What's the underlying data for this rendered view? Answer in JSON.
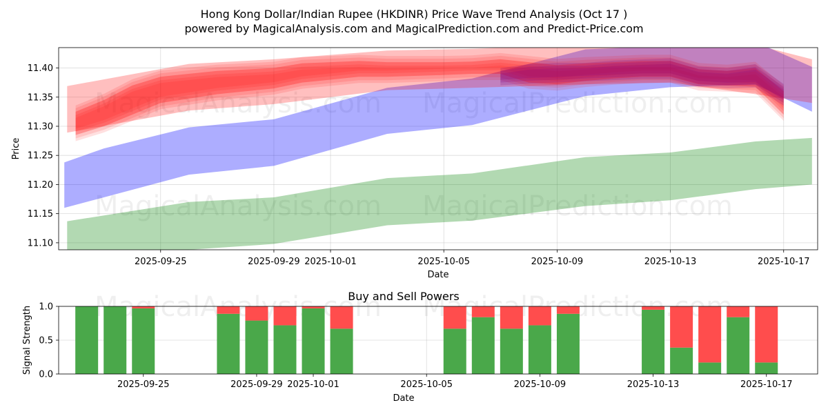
{
  "title_line1": "Hong Kong Dollar/Indian Rupee (HKDINR) Price Wave Trend Analysis (Oct 17 )",
  "title_line2": "powered by MagicalAnalysis.com and MagicalPrediction.com and Predict-Price.com",
  "watermarks": [
    "MagicalAnalysis.com",
    "MagicalPrediction.com"
  ],
  "colors": {
    "red": "#ff0000",
    "blue": "#0000ff",
    "green": "#008000",
    "purple": "#800080",
    "buy": "#4aa84a",
    "sell": "#ff4d4d"
  },
  "chart_data": [
    {
      "type": "area",
      "title": "",
      "xlabel": "Date",
      "ylabel": "Price",
      "xlim": [
        "2025-09-21.4",
        "2025-10-18.2"
      ],
      "ylim": [
        11.088,
        11.435
      ],
      "x_ticks": [
        "2025-09-25",
        "2025-09-29",
        "2025-10-01",
        "2025-10-05",
        "2025-10-09",
        "2025-10-13",
        "2025-10-17"
      ],
      "y_ticks": [
        11.1,
        11.15,
        11.2,
        11.25,
        11.3,
        11.35,
        11.4
      ],
      "grid": true,
      "series": [
        {
          "name": "green band",
          "color": "green",
          "x": [
            "2025-09-21.7",
            "2025-09-26",
            "2025-09-29",
            "2025-10-03",
            "2025-10-06",
            "2025-10-10",
            "2025-10-13",
            "2025-10-16",
            "2025-10-18"
          ],
          "upper": [
            11.137,
            11.17,
            11.178,
            11.211,
            11.219,
            11.247,
            11.255,
            11.274,
            11.28
          ],
          "lower": [
            11.082,
            11.088,
            11.098,
            11.13,
            11.138,
            11.163,
            11.173,
            11.192,
            11.2
          ]
        },
        {
          "name": "blue band",
          "color": "blue",
          "x": [
            "2025-09-21.6",
            "2025-09-23",
            "2025-09-26",
            "2025-09-29",
            "2025-10-03",
            "2025-10-06",
            "2025-10-10",
            "2025-10-13",
            "2025-10-16",
            "2025-10-18"
          ],
          "upper": [
            11.238,
            11.262,
            11.298,
            11.312,
            11.366,
            11.382,
            11.432,
            11.438,
            11.445,
            11.402
          ],
          "lower": [
            11.16,
            11.178,
            11.217,
            11.232,
            11.287,
            11.302,
            11.352,
            11.367,
            11.372,
            11.325
          ]
        },
        {
          "name": "red band",
          "color": "red",
          "x": [
            "2025-09-21.7",
            "2025-09-26",
            "2025-09-29",
            "2025-10-03",
            "2025-10-06",
            "2025-10-10",
            "2025-10-13",
            "2025-10-16",
            "2025-10-18"
          ],
          "upper": [
            11.369,
            11.407,
            11.415,
            11.43,
            11.433,
            11.44,
            11.445,
            11.44,
            11.415
          ],
          "lower": [
            11.289,
            11.327,
            11.338,
            11.362,
            11.366,
            11.372,
            11.375,
            11.355,
            11.34
          ]
        },
        {
          "name": "red wave",
          "color": "red",
          "x": [
            "2025-09-22",
            "2025-09-23",
            "2025-09-24",
            "2025-09-25",
            "2025-09-27",
            "2025-09-29",
            "2025-09-30",
            "2025-10-01",
            "2025-10-02",
            "2025-10-03",
            "2025-10-05",
            "2025-10-06",
            "2025-10-07",
            "2025-10-08",
            "2025-10-09",
            "2025-10-10",
            "2025-10-11",
            "2025-10-12",
            "2025-10-13",
            "2025-10-14",
            "2025-10-15",
            "2025-10-16",
            "2025-10-17"
          ],
          "upper": [
            11.325,
            11.345,
            11.37,
            11.385,
            11.395,
            11.4,
            11.408,
            11.41,
            11.412,
            11.41,
            11.41,
            11.411,
            11.415,
            11.41,
            11.405,
            11.408,
            11.41,
            11.412,
            11.412,
            11.398,
            11.395,
            11.4,
            11.36
          ],
          "lower": [
            11.285,
            11.3,
            11.32,
            11.34,
            11.355,
            11.365,
            11.375,
            11.38,
            11.385,
            11.385,
            11.388,
            11.39,
            11.39,
            11.375,
            11.372,
            11.378,
            11.382,
            11.385,
            11.385,
            11.372,
            11.37,
            11.368,
            11.32
          ]
        },
        {
          "name": "purple wave",
          "color": "purple",
          "x": [
            "2025-10-07",
            "2025-10-08",
            "2025-10-09",
            "2025-10-10",
            "2025-10-11",
            "2025-10-12",
            "2025-10-13",
            "2025-10-14",
            "2025-10-15",
            "2025-10-16",
            "2025-10-17"
          ],
          "upper": [
            11.395,
            11.402,
            11.404,
            11.404,
            11.408,
            11.41,
            11.412,
            11.398,
            11.395,
            11.402,
            11.368
          ],
          "lower": [
            11.375,
            11.378,
            11.38,
            11.382,
            11.384,
            11.386,
            11.386,
            11.373,
            11.37,
            11.371,
            11.34
          ]
        }
      ]
    },
    {
      "type": "bar",
      "title": "Buy and Sell Powers",
      "xlabel": "Date",
      "ylabel": "Signal Strength",
      "ylim": [
        0,
        1
      ],
      "y_ticks": [
        "0.0",
        "0.5",
        "1.0"
      ],
      "x_ticks": [
        "2025-09-25",
        "2025-09-29",
        "2025-10-01",
        "2025-10-05",
        "2025-10-09",
        "2025-10-13",
        "2025-10-17"
      ],
      "categories": [
        "2025-09-23",
        "2025-09-24",
        "2025-09-25",
        "2025-09-28",
        "2025-09-29",
        "2025-09-30",
        "2025-10-01",
        "2025-10-02",
        "2025-10-06",
        "2025-10-07",
        "2025-10-08",
        "2025-10-09",
        "2025-10-10",
        "2025-10-13",
        "2025-10-14",
        "2025-10-15",
        "2025-10-16",
        "2025-10-17"
      ],
      "series": [
        {
          "name": "Buy",
          "color": "buy",
          "values": [
            1.0,
            1.0,
            0.97,
            0.89,
            0.79,
            0.72,
            0.97,
            0.67,
            0.67,
            0.84,
            0.67,
            0.72,
            0.89,
            0.95,
            0.39,
            0.17,
            0.84,
            0.17
          ]
        },
        {
          "name": "Sell",
          "color": "sell",
          "values": [
            0.0,
            0.0,
            0.03,
            0.11,
            0.21,
            0.28,
            0.03,
            0.33,
            0.33,
            0.16,
            0.33,
            0.28,
            0.11,
            0.05,
            0.61,
            0.83,
            0.16,
            0.83
          ]
        }
      ]
    }
  ]
}
